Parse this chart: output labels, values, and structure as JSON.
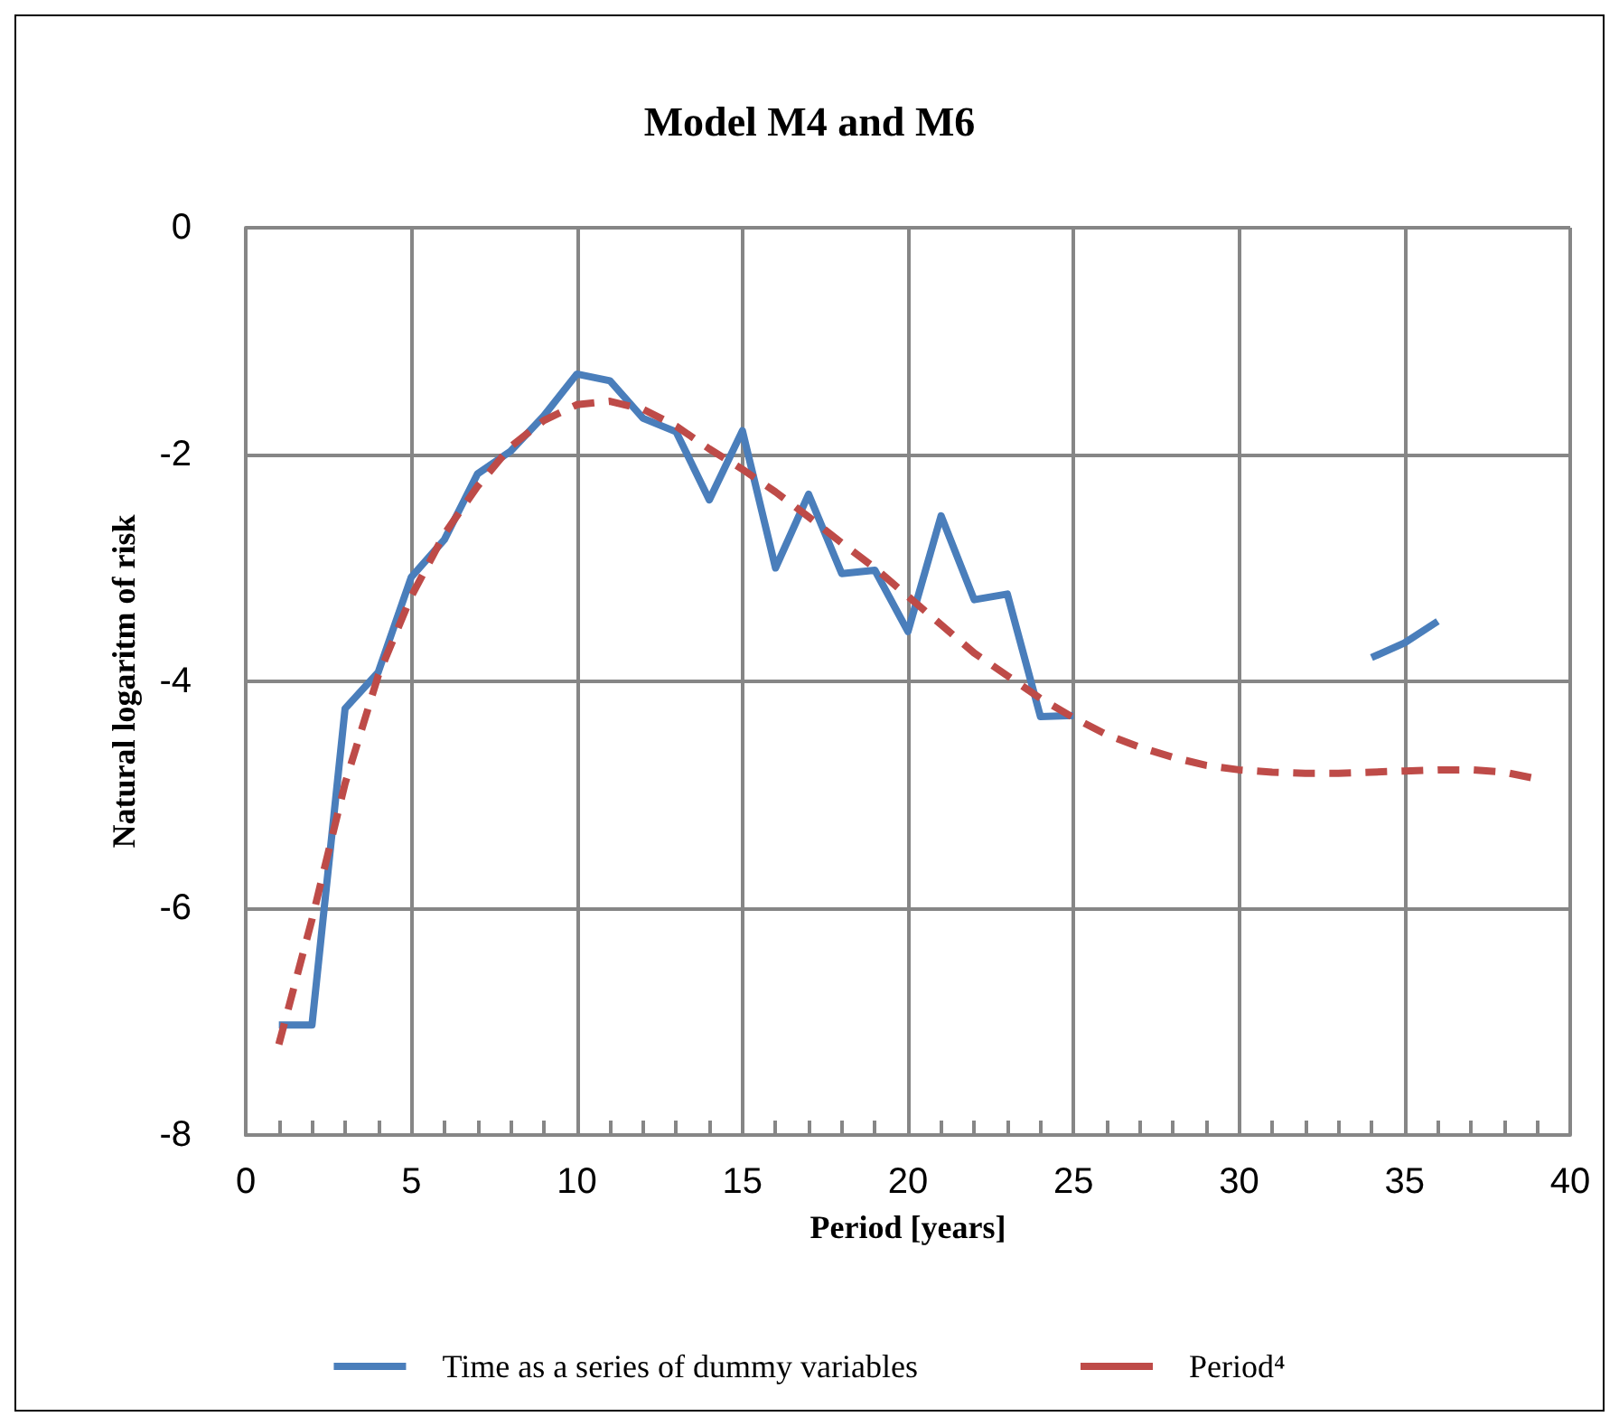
{
  "chart_data": {
    "type": "line",
    "title": "Model M4 and M6",
    "xlabel": "Period [years]",
    "ylabel": "Natural logaritm of risk",
    "x": [
      1,
      2,
      3,
      4,
      5,
      6,
      7,
      8,
      9,
      10,
      11,
      12,
      13,
      14,
      15,
      16,
      17,
      18,
      19,
      20,
      21,
      22,
      23,
      24,
      25,
      26,
      27,
      28,
      29,
      30,
      31,
      32,
      33,
      34,
      35,
      36,
      37,
      38,
      39
    ],
    "series": [
      {
        "name": "Time as a series of dummy variables",
        "color": "#4a7ebb",
        "line_style": "solid",
        "values": [
          -7.03,
          -7.03,
          -4.24,
          -3.92,
          -3.08,
          -2.75,
          -2.17,
          -1.97,
          -1.66,
          -1.29,
          -1.35,
          -1.68,
          -1.8,
          -2.4,
          -1.79,
          -3.0,
          -2.35,
          -3.05,
          -3.02,
          -3.56,
          -2.54,
          -3.28,
          -3.23,
          -4.31,
          -4.3,
          null,
          null,
          null,
          null,
          null,
          null,
          null,
          null,
          -3.79,
          -3.66,
          -3.47,
          null,
          null,
          null
        ]
      },
      {
        "name": "Period⁴",
        "color": "#be4b48",
        "line_style": "dashed",
        "values": [
          -7.2,
          -6.1,
          -4.9,
          -3.95,
          -3.25,
          -2.7,
          -2.28,
          -1.93,
          -1.7,
          -1.56,
          -1.53,
          -1.6,
          -1.75,
          -1.95,
          -2.13,
          -2.33,
          -2.55,
          -2.78,
          -3.0,
          -3.25,
          -3.5,
          -3.75,
          -3.95,
          -4.15,
          -4.32,
          -4.47,
          -4.58,
          -4.67,
          -4.74,
          -4.78,
          -4.8,
          -4.81,
          -4.81,
          -4.8,
          -4.79,
          -4.78,
          -4.78,
          -4.8,
          -4.86
        ]
      }
    ],
    "xlim": [
      0,
      40
    ],
    "xticks": [
      0,
      5,
      10,
      15,
      20,
      25,
      30,
      35,
      40
    ],
    "ylim": [
      -8,
      0
    ],
    "yticks": [
      -8,
      -6,
      -4,
      -2,
      0
    ],
    "grid": true,
    "legend": "bottom",
    "marker": "none"
  }
}
